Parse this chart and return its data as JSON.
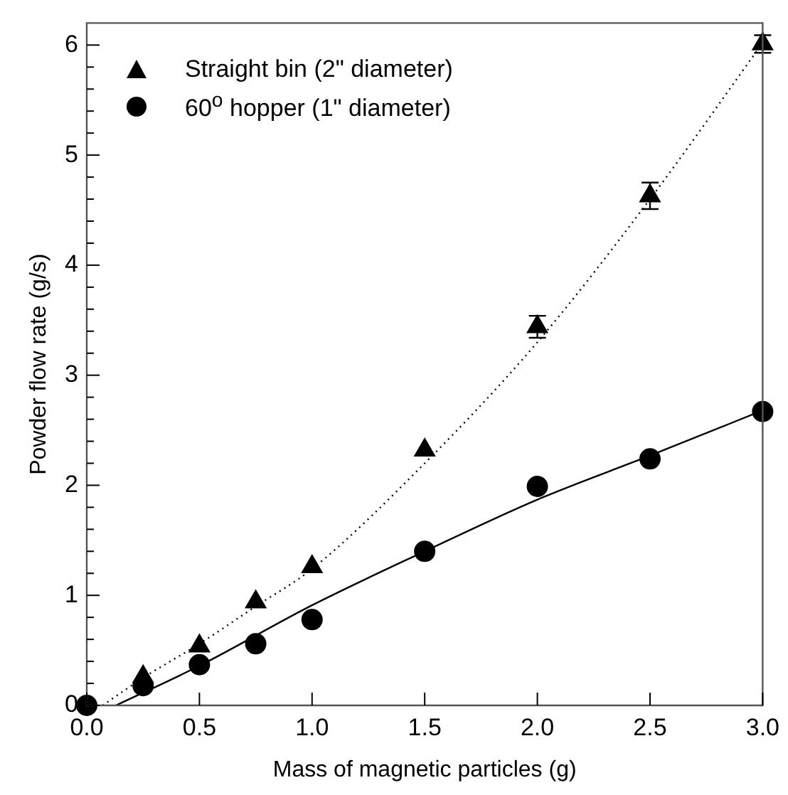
{
  "chart_data": {
    "type": "scatter",
    "xlabel": "Mass of magnetic particles (g)",
    "ylabel": "Powder flow rate (g/s)",
    "xlim": [
      0,
      3
    ],
    "xticks": [
      {
        "value": 0,
        "label": "0.0"
      },
      {
        "value": 0.5,
        "label": "0.5"
      },
      {
        "value": 1,
        "label": "1.0"
      },
      {
        "value": 1.5,
        "label": "1.5"
      },
      {
        "value": 2,
        "label": "2.0"
      },
      {
        "value": 2.5,
        "label": "2.5"
      },
      {
        "value": 3,
        "label": "3.0"
      }
    ],
    "ylim": [
      0,
      6.2
    ],
    "yticks": [
      0,
      {
        "value": 0.2,
        "label": null
      },
      {
        "value": 0.4,
        "label": null
      },
      {
        "value": 0.6,
        "label": null
      },
      {
        "value": 0.8,
        "label": null
      },
      1,
      {
        "value": 1.2,
        "label": null
      },
      {
        "value": 1.4,
        "label": null
      },
      {
        "value": 1.6,
        "label": null
      },
      {
        "value": 1.8,
        "label": null
      },
      2,
      {
        "value": 2.2,
        "label": null
      },
      {
        "value": 2.4,
        "label": null
      },
      {
        "value": 2.6,
        "label": null
      },
      {
        "value": 2.8,
        "label": null
      },
      3,
      {
        "value": 3.2,
        "label": null
      },
      {
        "value": 3.4,
        "label": null
      },
      {
        "value": 3.6,
        "label": null
      },
      {
        "value": 3.8,
        "label": null
      },
      4,
      {
        "value": 4.2,
        "label": null
      },
      {
        "value": 4.4,
        "label": null
      },
      {
        "value": 4.6,
        "label": null
      },
      {
        "value": 4.8,
        "label": null
      },
      5,
      {
        "value": 5.2,
        "label": null
      },
      {
        "value": 5.4,
        "label": null
      },
      {
        "value": 5.6,
        "label": null
      },
      {
        "value": 5.8,
        "label": null
      },
      6
    ],
    "grid": false,
    "legend": "top left",
    "series": [
      {
        "name": "Straight bin (2\" diameter)",
        "color": "#000000",
        "marker": "triangle",
        "x": [
          0.25,
          0.5,
          0.75,
          1,
          1.5,
          2,
          2.5,
          3
        ],
        "values": [
          0.26,
          0.54,
          0.94,
          1.26,
          2.32,
          3.44,
          4.63,
          6.01
        ],
        "errors": [
          null,
          null,
          null,
          null,
          null,
          0.1,
          0.12,
          0.08
        ]
      },
      {
        "name": "60$^{o}$ hopper (1\" diameter)",
        "color": "#000000",
        "marker": "circle",
        "x": [
          0,
          0.25,
          0.5,
          0.75,
          1,
          1.5,
          2,
          2.5,
          3
        ],
        "values": [
          0,
          0.18,
          0.37,
          0.56,
          0.78,
          1.4,
          1.99,
          2.24,
          2.67
        ],
        "errors": [
          null,
          null,
          null,
          null,
          null,
          null,
          null,
          0.05,
          null
        ]
      },
      {
        "type": "line",
        "color": "#000000",
        "marker": "none",
        "line_style": "dotted",
        "x": [
          0.07,
          0.25,
          0.5,
          0.75,
          1,
          1.5,
          2,
          2.5,
          3
        ],
        "values": [
          0,
          0.25,
          0.56,
          0.9,
          1.24,
          2.2,
          3.3,
          4.6,
          6.02
        ]
      },
      {
        "type": "line",
        "color": "#000000",
        "marker": "none",
        "line_style": "solid",
        "x": [
          0.13,
          0.5,
          1,
          1.5,
          2,
          2.5,
          3
        ],
        "values": [
          0,
          0.36,
          0.91,
          1.4,
          1.87,
          2.27,
          2.68
        ]
      }
    ]
  }
}
